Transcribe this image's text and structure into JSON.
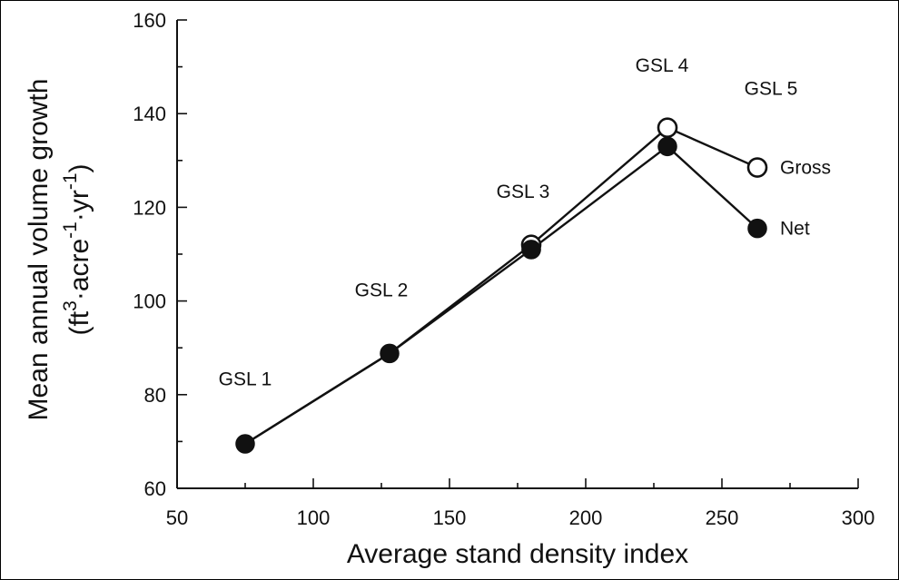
{
  "chart_data": {
    "type": "line",
    "xlabel": "Average stand density index",
    "ylabel_line1": "Mean annual volume growth",
    "ylabel_line2_parts": [
      "(ft",
      "3",
      "·acre",
      "-1",
      "·yr",
      "-1",
      ")"
    ],
    "xlim": [
      50,
      300
    ],
    "ylim": [
      60,
      160
    ],
    "xticks": [
      50,
      100,
      150,
      200,
      250,
      300
    ],
    "yticks": [
      60,
      80,
      100,
      120,
      140,
      160
    ],
    "grid": false,
    "series": [
      {
        "name": "Gross",
        "marker": "open-circle",
        "points": [
          {
            "x": 75,
            "y": 69.5
          },
          {
            "x": 128,
            "y": 88.8
          },
          {
            "x": 180,
            "y": 112
          },
          {
            "x": 230,
            "y": 137
          },
          {
            "x": 263,
            "y": 128.5
          }
        ]
      },
      {
        "name": "Net",
        "marker": "filled-circle",
        "points": [
          {
            "x": 75,
            "y": 69.5
          },
          {
            "x": 128,
            "y": 88.8
          },
          {
            "x": 180,
            "y": 111
          },
          {
            "x": 230,
            "y": 133
          },
          {
            "x": 263,
            "y": 115.5
          }
        ]
      }
    ],
    "annotations": [
      {
        "text": "GSL 1",
        "x": 75,
        "y": 82
      },
      {
        "text": "GSL 2",
        "x": 125,
        "y": 101
      },
      {
        "text": "GSL 3",
        "x": 177,
        "y": 122
      },
      {
        "text": "GSL 4",
        "x": 228,
        "y": 149
      },
      {
        "text": "GSL 5",
        "x": 268,
        "y": 144
      }
    ]
  }
}
